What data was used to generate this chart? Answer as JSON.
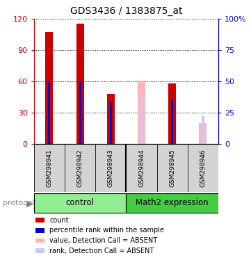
{
  "title": "GDS3436 / 1383875_at",
  "samples": [
    "GSM298941",
    "GSM298942",
    "GSM298943",
    "GSM298944",
    "GSM298945",
    "GSM298946"
  ],
  "groups": [
    "control",
    "control",
    "control",
    "Math2 expression",
    "Math2 expression",
    "Math2 expression"
  ],
  "ylim_left": [
    0,
    120
  ],
  "ylim_right": [
    0,
    100
  ],
  "yticks_left": [
    0,
    30,
    60,
    90,
    120
  ],
  "yticks_right": [
    0,
    25,
    50,
    75,
    100
  ],
  "yticklabels_right": [
    "0",
    "25",
    "50",
    "75",
    "100%"
  ],
  "bars": [
    {
      "sample": "GSM298941",
      "count": 107,
      "rank": 60,
      "absent_value": null,
      "absent_rank": null
    },
    {
      "sample": "GSM298942",
      "count": 115,
      "rank": 60,
      "absent_value": null,
      "absent_rank": null
    },
    {
      "sample": "GSM298943",
      "count": 48,
      "rank": 40,
      "absent_value": null,
      "absent_rank": null
    },
    {
      "sample": "GSM298944",
      "count": null,
      "rank": null,
      "absent_value": 61,
      "absent_rank": 44
    },
    {
      "sample": "GSM298945",
      "count": 58,
      "rank": 43,
      "absent_value": null,
      "absent_rank": null
    },
    {
      "sample": "GSM298946",
      "count": null,
      "rank": null,
      "absent_value": 20,
      "absent_rank": 27
    }
  ],
  "color_count": "#CC0000",
  "color_rank": "#0000CC",
  "color_absent_value": "#FFB6B6",
  "color_absent_rank": "#C8C8FF",
  "legend_items": [
    {
      "color": "#CC0000",
      "label": "count"
    },
    {
      "color": "#0000CC",
      "label": "percentile rank within the sample"
    },
    {
      "color": "#FFB6B6",
      "label": "value, Detection Call = ABSENT"
    },
    {
      "color": "#C8C8FF",
      "label": "rank, Detection Call = ABSENT"
    }
  ]
}
